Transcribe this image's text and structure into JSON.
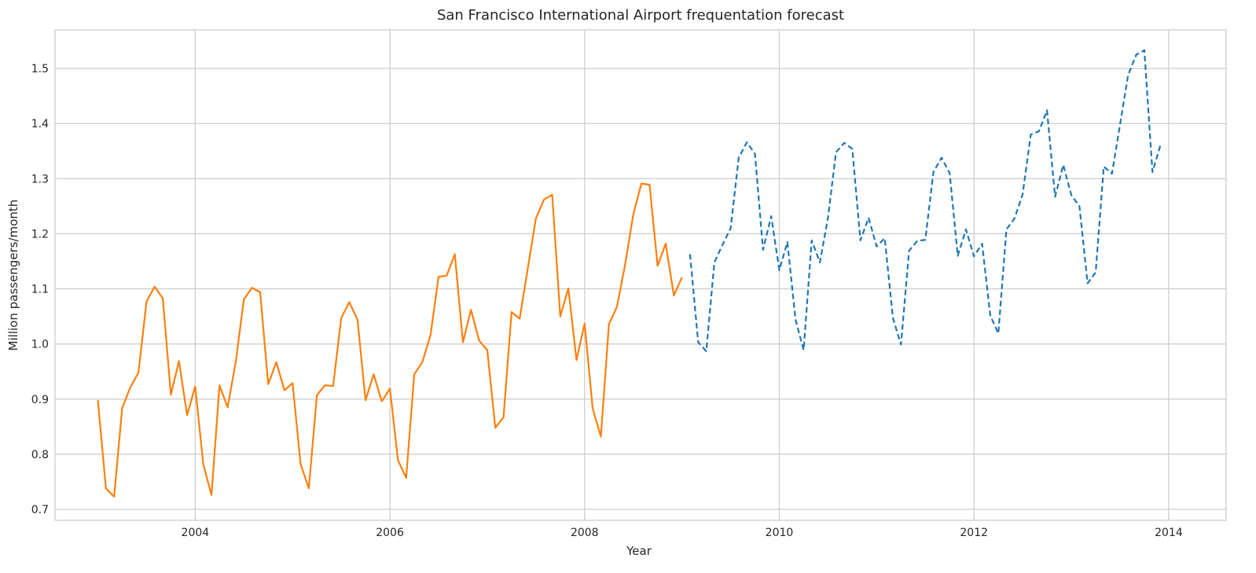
{
  "chart_data": {
    "type": "line",
    "title": "San Francisco International Airport frequentation forecast",
    "xlabel": "Year",
    "ylabel": "Million passengers/month",
    "xlim": [
      2002.56,
      2014.59
    ],
    "ylim": [
      0.68,
      1.57
    ],
    "x_ticks": [
      2004,
      2006,
      2008,
      2010,
      2012,
      2014
    ],
    "x_tick_labels": [
      "2004",
      "2006",
      "2008",
      "2010",
      "2012",
      "2014"
    ],
    "y_ticks": [
      0.7,
      0.8,
      0.9,
      1.0,
      1.1,
      1.2,
      1.3,
      1.4,
      1.5
    ],
    "y_tick_labels": [
      "0.7",
      "0.8",
      "0.9",
      "1.0",
      "1.1",
      "1.2",
      "1.3",
      "1.4",
      "1.5"
    ],
    "grid": true,
    "series": [
      {
        "color": "#ff7f0e",
        "style": "solid",
        "x": [
          2003.0,
          2003.083,
          2003.167,
          2003.25,
          2003.333,
          2003.417,
          2003.5,
          2003.583,
          2003.667,
          2003.75,
          2003.833,
          2003.917,
          2004.0,
          2004.083,
          2004.167,
          2004.25,
          2004.333,
          2004.417,
          2004.5,
          2004.583,
          2004.667,
          2004.75,
          2004.833,
          2004.917,
          2005.0,
          2005.083,
          2005.167,
          2005.25,
          2005.333,
          2005.417,
          2005.5,
          2005.583,
          2005.667,
          2005.75,
          2005.833,
          2005.917,
          2006.0,
          2006.083,
          2006.167,
          2006.25,
          2006.333,
          2006.417,
          2006.5,
          2006.583,
          2006.667,
          2006.75,
          2006.833,
          2006.917,
          2007.0,
          2007.083,
          2007.167,
          2007.25,
          2007.333,
          2007.417,
          2007.5,
          2007.583,
          2007.667,
          2007.75,
          2007.833,
          2007.917,
          2008.0,
          2008.083,
          2008.167,
          2008.25,
          2008.333,
          2008.417,
          2008.5,
          2008.583,
          2008.667,
          2008.75,
          2008.833,
          2008.917,
          2009.0
        ],
        "y": [
          0.898,
          0.738,
          0.723,
          0.884,
          0.921,
          0.948,
          1.077,
          1.104,
          1.083,
          0.908,
          0.969,
          0.871,
          0.923,
          0.782,
          0.726,
          0.925,
          0.885,
          0.968,
          1.081,
          1.102,
          1.094,
          0.927,
          0.967,
          0.916,
          0.929,
          0.782,
          0.738,
          0.907,
          0.925,
          0.924,
          1.047,
          1.076,
          1.044,
          0.898,
          0.945,
          0.896,
          0.919,
          0.789,
          0.757,
          0.945,
          0.967,
          1.016,
          1.122,
          1.124,
          1.163,
          1.003,
          1.062,
          1.006,
          0.989,
          0.848,
          0.867,
          1.058,
          1.046,
          1.138,
          1.228,
          1.262,
          1.271,
          1.05,
          1.101,
          0.971,
          1.037,
          0.883,
          0.832,
          1.036,
          1.068,
          1.145,
          1.235,
          1.291,
          1.289,
          1.142,
          1.182,
          1.088,
          1.121
        ]
      },
      {
        "color": "#1f77b4",
        "style": "dashed",
        "x": [
          2009.083,
          2009.167,
          2009.25,
          2009.333,
          2009.417,
          2009.5,
          2009.583,
          2009.667,
          2009.75,
          2009.833,
          2009.917,
          2010.0,
          2010.083,
          2010.167,
          2010.25,
          2010.333,
          2010.417,
          2010.5,
          2010.583,
          2010.667,
          2010.75,
          2010.833,
          2010.917,
          2011.0,
          2011.083,
          2011.167,
          2011.25,
          2011.333,
          2011.417,
          2011.5,
          2011.583,
          2011.667,
          2011.75,
          2011.833,
          2011.917,
          2012.0,
          2012.083,
          2012.167,
          2012.25,
          2012.333,
          2012.417,
          2012.5,
          2012.583,
          2012.667,
          2012.75,
          2012.833,
          2012.917,
          2013.0,
          2013.083,
          2013.167,
          2013.25,
          2013.333,
          2013.417,
          2013.5,
          2013.583,
          2013.667,
          2013.75,
          2013.833,
          2013.917
        ],
        "y": [
          1.163,
          1.003,
          0.987,
          1.148,
          1.18,
          1.21,
          1.338,
          1.366,
          1.345,
          1.171,
          1.232,
          1.134,
          1.185,
          1.044,
          0.989,
          1.188,
          1.148,
          1.229,
          1.348,
          1.365,
          1.354,
          1.188,
          1.229,
          1.177,
          1.192,
          1.047,
          0.999,
          1.169,
          1.187,
          1.189,
          1.312,
          1.338,
          1.31,
          1.16,
          1.208,
          1.159,
          1.182,
          1.052,
          1.019,
          1.208,
          1.228,
          1.272,
          1.38,
          1.386,
          1.424,
          1.267,
          1.325,
          1.27,
          1.25,
          1.11,
          1.13,
          1.322,
          1.309,
          1.398,
          1.488,
          1.525,
          1.533,
          1.312,
          1.362
        ]
      }
    ]
  }
}
